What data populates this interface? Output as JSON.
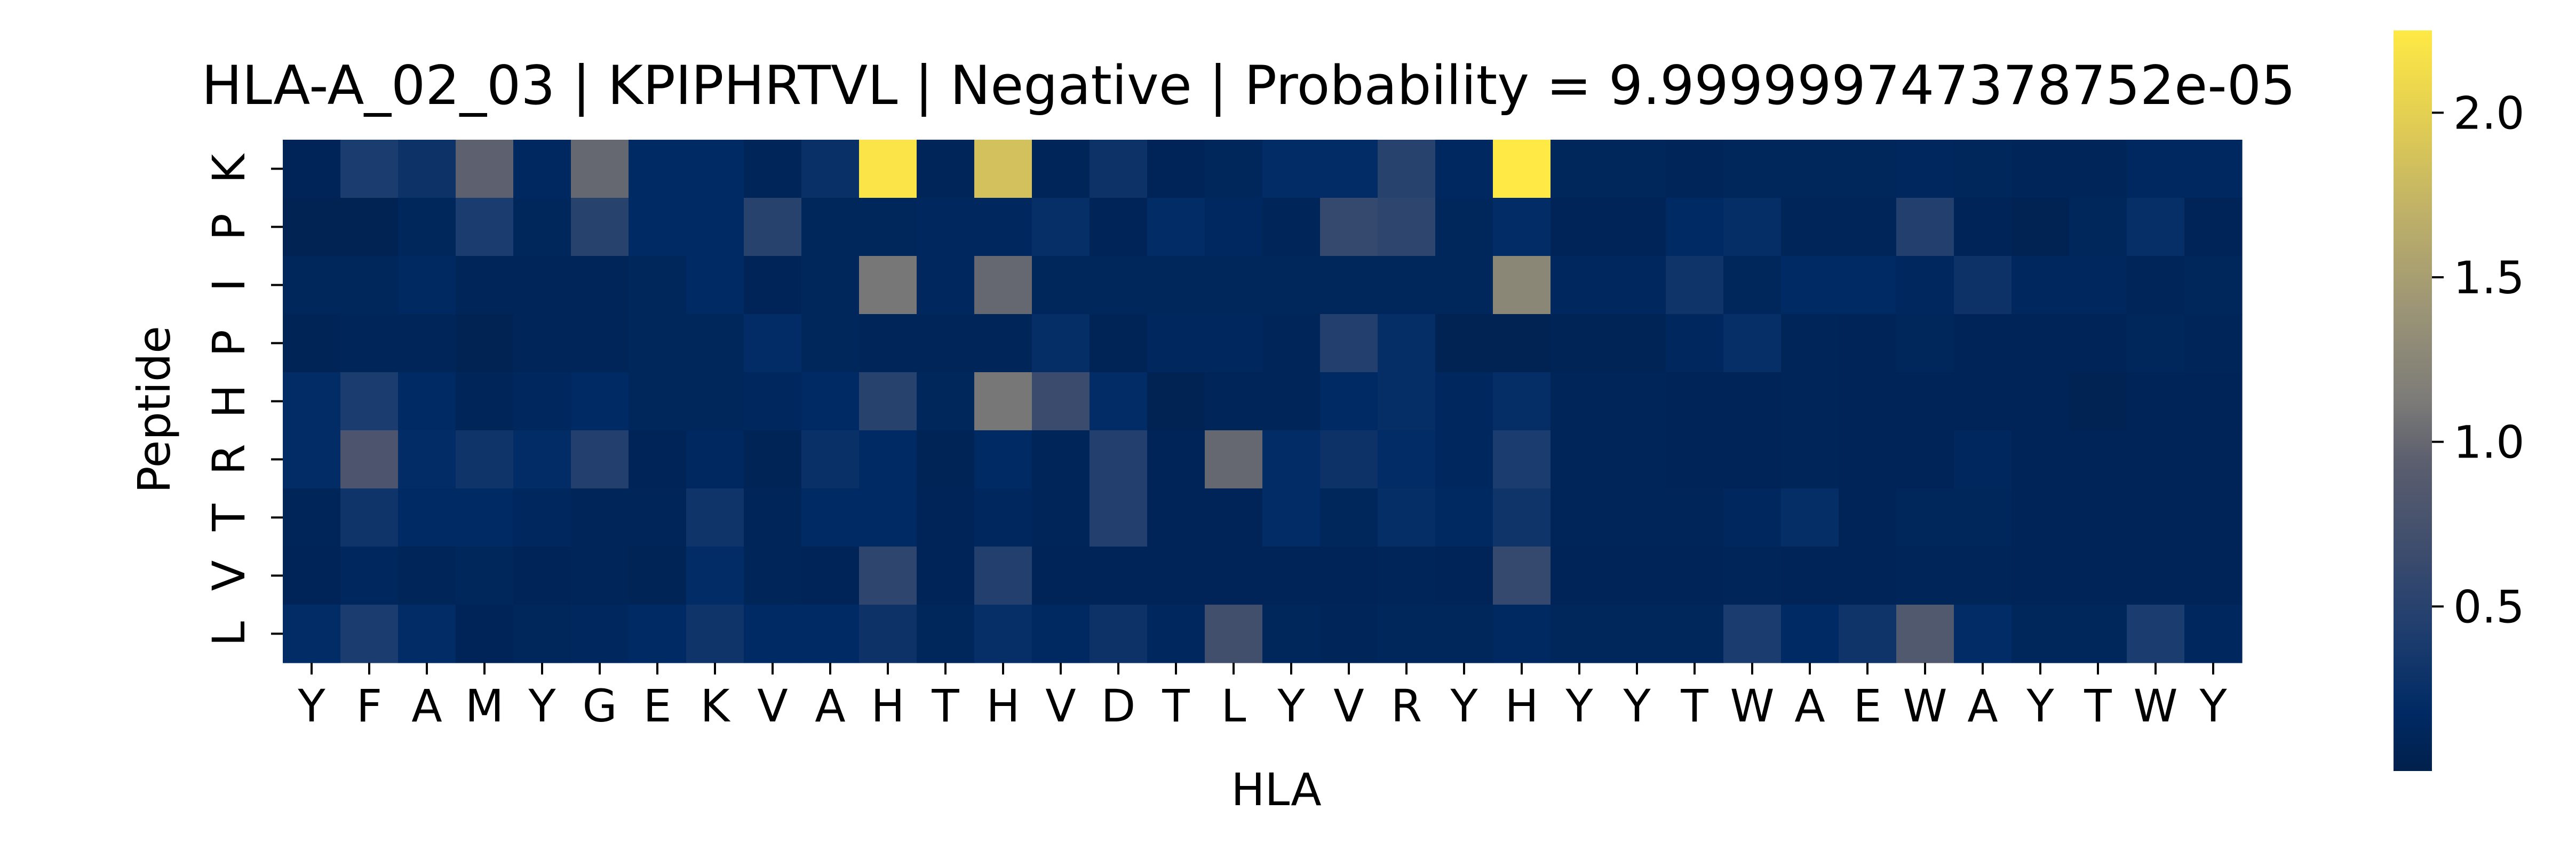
{
  "chart_data": {
    "type": "heatmap",
    "title": "HLA-A_02_03 | KPIPHRTVL | Negative | Probability = 9.999999747378752e-05",
    "xlabel": "HLA",
    "ylabel": "Peptide",
    "x_categories": [
      "Y",
      "F",
      "A",
      "M",
      "Y",
      "G",
      "E",
      "K",
      "V",
      "A",
      "H",
      "T",
      "H",
      "V",
      "D",
      "T",
      "L",
      "Y",
      "V",
      "R",
      "Y",
      "H",
      "Y",
      "Y",
      "T",
      "W",
      "A",
      "E",
      "W",
      "A",
      "Y",
      "T",
      "W",
      "Y"
    ],
    "y_categories": [
      "K",
      "P",
      "I",
      "P",
      "H",
      "R",
      "T",
      "V",
      "L"
    ],
    "values": [
      [
        0.08,
        0.4,
        0.28,
        0.95,
        0.15,
        1.0,
        0.18,
        0.18,
        0.1,
        0.25,
        2.2,
        0.1,
        1.85,
        0.1,
        0.28,
        0.08,
        0.12,
        0.2,
        0.2,
        0.5,
        0.15,
        2.25,
        0.12,
        0.12,
        0.1,
        0.12,
        0.12,
        0.12,
        0.14,
        0.12,
        0.1,
        0.1,
        0.15,
        0.15
      ],
      [
        0.06,
        0.06,
        0.12,
        0.4,
        0.12,
        0.5,
        0.18,
        0.18,
        0.5,
        0.12,
        0.12,
        0.14,
        0.14,
        0.24,
        0.08,
        0.2,
        0.15,
        0.1,
        0.6,
        0.55,
        0.12,
        0.2,
        0.08,
        0.08,
        0.18,
        0.22,
        0.1,
        0.1,
        0.45,
        0.08,
        0.06,
        0.12,
        0.24,
        0.08
      ],
      [
        0.12,
        0.12,
        0.16,
        0.1,
        0.1,
        0.1,
        0.12,
        0.18,
        0.08,
        0.12,
        1.1,
        0.14,
        1.0,
        0.12,
        0.12,
        0.12,
        0.12,
        0.12,
        0.12,
        0.12,
        0.12,
        1.25,
        0.14,
        0.14,
        0.3,
        0.12,
        0.18,
        0.18,
        0.14,
        0.28,
        0.14,
        0.14,
        0.1,
        0.12
      ],
      [
        0.07,
        0.1,
        0.1,
        0.06,
        0.1,
        0.1,
        0.12,
        0.12,
        0.2,
        0.12,
        0.1,
        0.1,
        0.1,
        0.22,
        0.07,
        0.14,
        0.14,
        0.1,
        0.45,
        0.22,
        0.06,
        0.05,
        0.07,
        0.07,
        0.14,
        0.24,
        0.1,
        0.08,
        0.12,
        0.08,
        0.08,
        0.08,
        0.12,
        0.1
      ],
      [
        0.2,
        0.4,
        0.18,
        0.1,
        0.14,
        0.18,
        0.12,
        0.12,
        0.14,
        0.18,
        0.5,
        0.12,
        1.1,
        0.65,
        0.2,
        0.06,
        0.1,
        0.1,
        0.18,
        0.22,
        0.14,
        0.22,
        0.1,
        0.1,
        0.08,
        0.08,
        0.1,
        0.08,
        0.08,
        0.08,
        0.08,
        0.06,
        0.08,
        0.08
      ],
      [
        0.2,
        0.8,
        0.2,
        0.3,
        0.2,
        0.45,
        0.08,
        0.15,
        0.07,
        0.25,
        0.18,
        0.07,
        0.18,
        0.1,
        0.45,
        0.08,
        1.0,
        0.2,
        0.28,
        0.2,
        0.14,
        0.4,
        0.1,
        0.1,
        0.08,
        0.08,
        0.1,
        0.08,
        0.08,
        0.14,
        0.08,
        0.08,
        0.08,
        0.08
      ],
      [
        0.1,
        0.3,
        0.18,
        0.18,
        0.14,
        0.1,
        0.1,
        0.3,
        0.1,
        0.18,
        0.18,
        0.08,
        0.14,
        0.1,
        0.45,
        0.08,
        0.08,
        0.2,
        0.12,
        0.22,
        0.16,
        0.3,
        0.1,
        0.1,
        0.1,
        0.14,
        0.22,
        0.08,
        0.12,
        0.12,
        0.08,
        0.08,
        0.08,
        0.08
      ],
      [
        0.08,
        0.14,
        0.1,
        0.12,
        0.08,
        0.1,
        0.07,
        0.2,
        0.1,
        0.08,
        0.55,
        0.08,
        0.45,
        0.08,
        0.08,
        0.08,
        0.08,
        0.08,
        0.08,
        0.1,
        0.08,
        0.6,
        0.08,
        0.08,
        0.08,
        0.1,
        0.08,
        0.08,
        0.1,
        0.1,
        0.08,
        0.08,
        0.08,
        0.08
      ],
      [
        0.2,
        0.4,
        0.2,
        0.08,
        0.12,
        0.14,
        0.18,
        0.3,
        0.18,
        0.18,
        0.28,
        0.12,
        0.24,
        0.16,
        0.28,
        0.14,
        0.7,
        0.12,
        0.1,
        0.12,
        0.12,
        0.16,
        0.12,
        0.12,
        0.12,
        0.4,
        0.18,
        0.3,
        0.85,
        0.2,
        0.12,
        0.12,
        0.4,
        0.14
      ]
    ],
    "colormap": "cividis",
    "vmin": 0.0,
    "vmax": 2.25,
    "colorbar_ticks": [
      0.5,
      1.0,
      1.5,
      2.0
    ],
    "colorbar_tick_labels": [
      "0.5",
      "1.0",
      "1.5",
      "2.0"
    ],
    "grid": false,
    "colors": {
      "cmap_low": "#00204C",
      "cmap_mid": "#7C7B78",
      "cmap_high": "#FFE945"
    }
  }
}
